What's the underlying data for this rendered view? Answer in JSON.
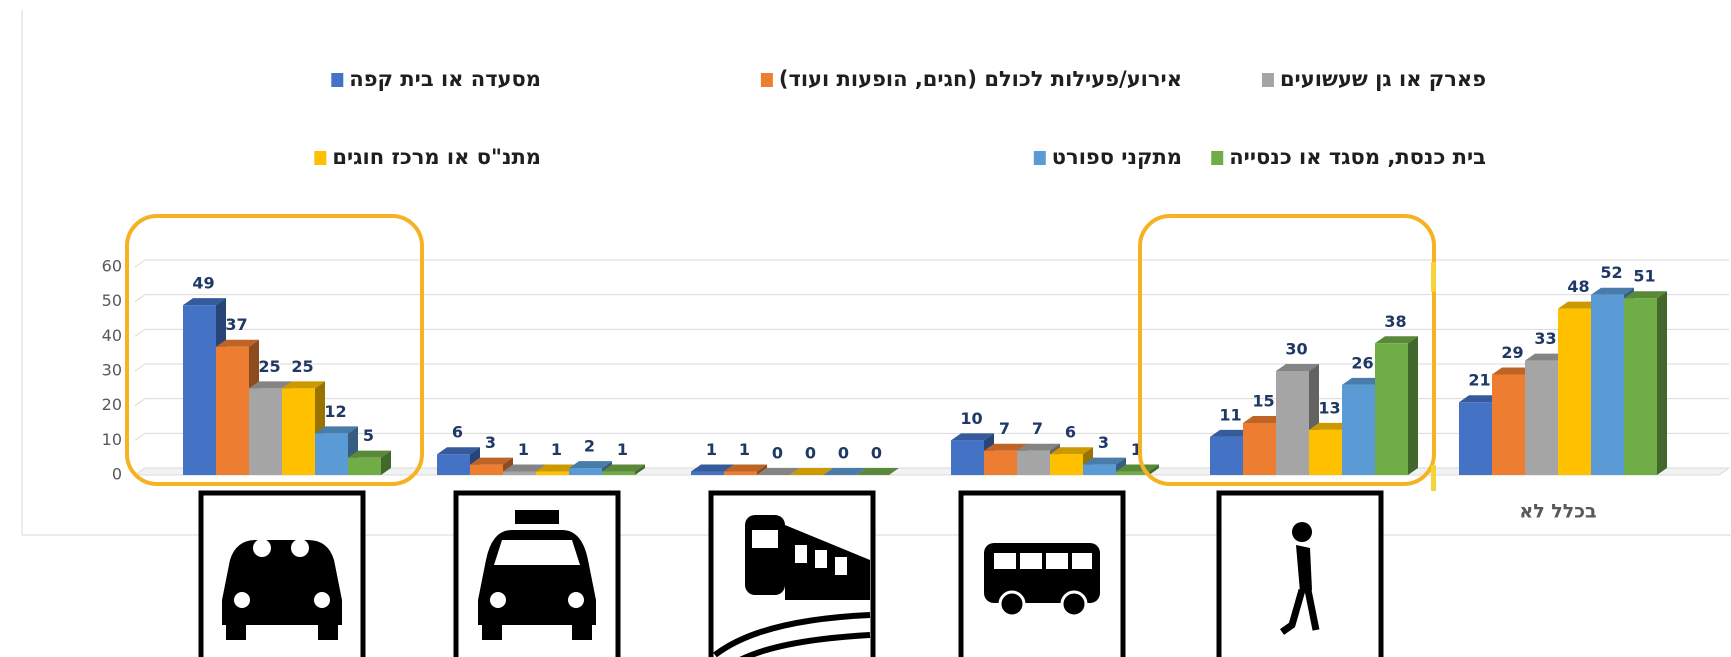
{
  "chart_data": {
    "type": "bar",
    "categories": [
      null,
      null,
      null,
      null,
      null,
      "בכלל לא"
    ],
    "series": [
      {
        "name": "מסעדה או בית קפה",
        "color": "#4472c4",
        "values": [
          49,
          6,
          1,
          10,
          11,
          21
        ]
      },
      {
        "name": "אירוע/פעילות לכולם (חגים, הופעות  ועוד)",
        "color": "#ed7d31",
        "values": [
          37,
          3,
          1,
          7,
          15,
          29
        ]
      },
      {
        "name": "פארק או גן שעשועים",
        "color": "#a5a5a5",
        "values": [
          25,
          1,
          0,
          7,
          30,
          33
        ]
      },
      {
        "name": "מתנ\"ס או מרכז חוגים",
        "color": "#ffc000",
        "values": [
          25,
          1,
          0,
          6,
          13,
          48
        ]
      },
      {
        "name": "מתקני ספורט",
        "color": "#5b9bd5",
        "values": [
          12,
          2,
          0,
          3,
          26,
          52
        ]
      },
      {
        "name": "בית כנסת, מסגד או כנסייה",
        "color": "#70ad47",
        "values": [
          5,
          1,
          0,
          1,
          38,
          51
        ]
      }
    ],
    "ylim": [
      0,
      60
    ],
    "yticks": [
      0,
      10,
      20,
      30,
      40,
      50,
      60
    ],
    "grid": true,
    "legend": "top"
  }
}
